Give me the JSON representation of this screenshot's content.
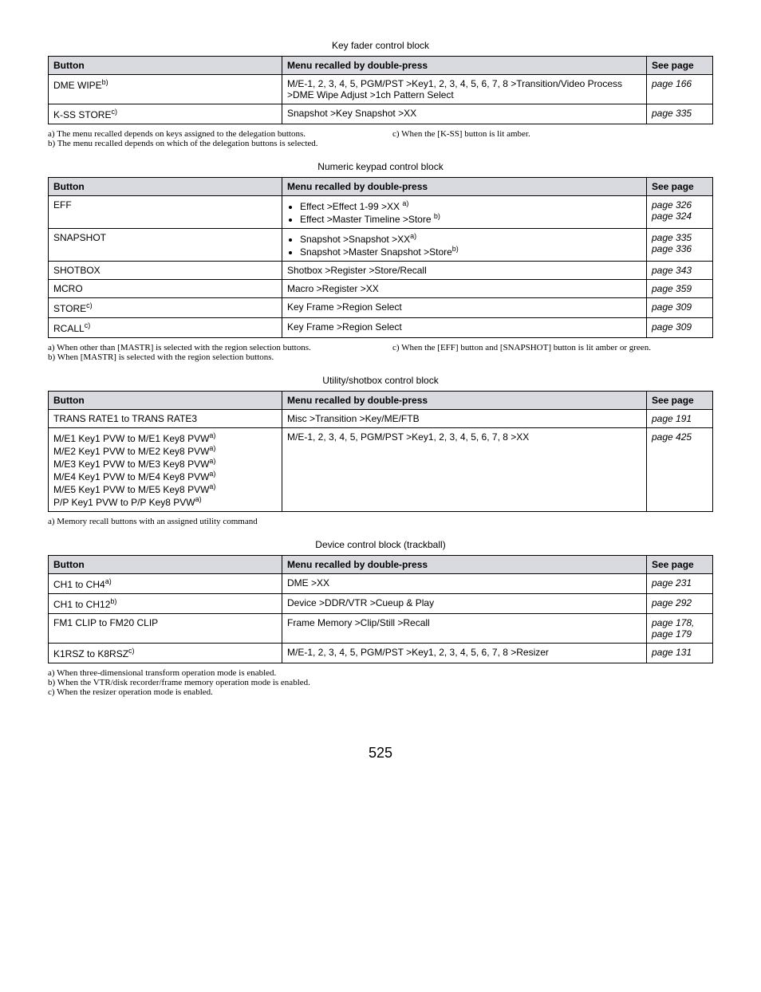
{
  "pageNumber": "525",
  "table1": {
    "caption": "Key fader control block",
    "headers": {
      "button": "Button",
      "menu": "Menu recalled by double-press",
      "page": "See page"
    },
    "rows": [
      {
        "button": "DME WIPE",
        "sup": "b)",
        "menu": "M/E-1, 2, 3, 4, 5, PGM/PST >Key1, 2, 3, 4, 5, 6, 7, 8 >Transition/Video Process >DME Wipe Adjust >1ch Pattern Select",
        "page": "page 166"
      },
      {
        "button": "K-SS STORE",
        "sup": "c)",
        "menu": "Snapshot >Key Snapshot >XX",
        "page": "page 335"
      }
    ],
    "footnotes": {
      "left": [
        "a) The menu recalled depends on keys assigned to the delegation buttons.",
        "b) The menu recalled depends on which of the delegation buttons is selected."
      ],
      "right": [
        "c) When the [K-SS] button is lit amber."
      ]
    }
  },
  "table2": {
    "caption": "Numeric keypad control block",
    "headers": {
      "button": "Button",
      "menu": "Menu recalled by double-press",
      "page": "See page"
    },
    "rows": [
      {
        "button": "EFF",
        "sup": "",
        "items": [
          {
            "text": "Effect >Effect 1-99 >XX",
            "sup": "a)"
          },
          {
            "text": "Effect >Master Timeline >Store",
            "sup": "b)"
          }
        ],
        "pages": [
          "page 326",
          "page 324"
        ]
      },
      {
        "button": "SNAPSHOT",
        "sup": "",
        "items": [
          {
            "text": "Snapshot >Snapshot >XX",
            "sup": "a)"
          },
          {
            "text": "Snapshot >Master Snapshot >Store",
            "sup": "b)"
          }
        ],
        "pages": [
          "page 335",
          "page 336"
        ]
      },
      {
        "button": "SHOTBOX",
        "sup": "",
        "menu": "Shotbox >Register >Store/Recall",
        "page": "page 343"
      },
      {
        "button": "MCRO",
        "sup": "",
        "menu": "Macro >Register >XX",
        "page": "page 359"
      },
      {
        "button": "STORE",
        "sup": "c)",
        "menu": "Key Frame >Region Select",
        "page": "page 309"
      },
      {
        "button": "RCALL",
        "sup": "c)",
        "menu": "Key Frame >Region Select",
        "page": "page 309"
      }
    ],
    "footnotes": {
      "left": [
        "a) When other than [MASTR] is selected with the region selection buttons.",
        "b) When [MASTR] is selected with the region selection buttons."
      ],
      "right": [
        "c) When the [EFF] button and [SNAPSHOT] button is lit amber or green."
      ]
    }
  },
  "table3": {
    "caption": "Utility/shotbox control block",
    "headers": {
      "button": "Button",
      "menu": "Menu recalled by double-press",
      "page": "See page"
    },
    "rows": [
      {
        "button": "TRANS RATE1 to TRANS RATE3",
        "sup": "",
        "menu": "Misc >Transition >Key/ME/FTB",
        "page": "page 191"
      },
      {
        "lines": [
          {
            "text": "M/E1 Key1 PVW to M/E1 Key8 PVW",
            "sup": "a)"
          },
          {
            "text": "M/E2 Key1 PVW to M/E2 Key8 PVW",
            "sup": "a)"
          },
          {
            "text": "M/E3 Key1 PVW to M/E3 Key8 PVW",
            "sup": "a)"
          },
          {
            "text": "M/E4 Key1 PVW to M/E4 Key8 PVW",
            "sup": "a)"
          },
          {
            "text": "M/E5 Key1 PVW to M/E5 Key8 PVW",
            "sup": "a)"
          },
          {
            "text": "P/P Key1 PVW to P/P Key8 PVW",
            "sup": "a)"
          }
        ],
        "menu": "M/E-1, 2, 3, 4, 5, PGM/PST >Key1, 2, 3, 4, 5, 6, 7, 8 >XX",
        "page": "page 425"
      }
    ],
    "footnote": "a) Memory recall buttons with an assigned utility command"
  },
  "table4": {
    "caption": "Device control block (trackball)",
    "headers": {
      "button": "Button",
      "menu": "Menu recalled by double-press",
      "page": "See page"
    },
    "rows": [
      {
        "button": "CH1 to CH4",
        "sup": "a)",
        "menu": "DME >XX",
        "page": "page 231"
      },
      {
        "button": "CH1 to CH12",
        "sup": "b)",
        "menu": "Device >DDR/VTR >Cueup & Play",
        "page": "page 292"
      },
      {
        "button": "FM1 CLIP to FM20 CLIP",
        "sup": "",
        "menu": "Frame Memory >Clip/Still >Recall",
        "pages": [
          "page 178,",
          "page 179"
        ]
      },
      {
        "button": "K1RSZ to K8RSZ",
        "sup": "c)",
        "menu": "M/E-1, 2, 3, 4, 5, PGM/PST >Key1, 2, 3, 4, 5, 6, 7, 8 >Resizer",
        "page": "page 131"
      }
    ],
    "footnotes": [
      "a) When three-dimensional transform operation mode is enabled.",
      "b) When the VTR/disk recorder/frame memory operation mode is enabled.",
      "c) When the resizer operation mode is enabled."
    ]
  }
}
